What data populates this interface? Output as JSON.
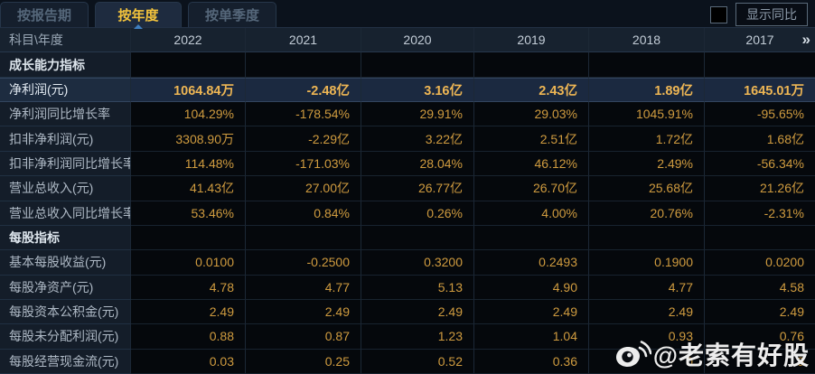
{
  "tabs": [
    {
      "label": "按报告期",
      "active": false
    },
    {
      "label": "按年度",
      "active": true
    },
    {
      "label": "按单季度",
      "active": false
    }
  ],
  "controls": {
    "yoy_checkbox_checked": false,
    "yoy_label": "显示同比"
  },
  "table": {
    "corner_label": "科目\\年度",
    "years": [
      "2022",
      "2021",
      "2020",
      "2019",
      "2018",
      "2017"
    ],
    "more_icon": "»",
    "rows": [
      {
        "type": "section",
        "label": "成长能力指标",
        "values": [
          "",
          "",
          "",
          "",
          "",
          ""
        ]
      },
      {
        "type": "data",
        "highlight": true,
        "label": "净利润(元)",
        "values": [
          "1064.84万",
          "-2.48亿",
          "3.16亿",
          "2.43亿",
          "1.89亿",
          "1645.01万"
        ]
      },
      {
        "type": "data",
        "highlight": false,
        "label": "净利润同比增长率",
        "values": [
          "104.29%",
          "-178.54%",
          "29.91%",
          "29.03%",
          "1045.91%",
          "-95.65%"
        ]
      },
      {
        "type": "data",
        "highlight": false,
        "label": "扣非净利润(元)",
        "values": [
          "3308.90万",
          "-2.29亿",
          "3.22亿",
          "2.51亿",
          "1.72亿",
          "1.68亿"
        ]
      },
      {
        "type": "data",
        "highlight": false,
        "label": "扣非净利润同比增长率",
        "values": [
          "114.48%",
          "-171.03%",
          "28.04%",
          "46.12%",
          "2.49%",
          "-56.34%"
        ]
      },
      {
        "type": "data",
        "highlight": false,
        "label": "营业总收入(元)",
        "values": [
          "41.43亿",
          "27.00亿",
          "26.77亿",
          "26.70亿",
          "25.68亿",
          "21.26亿"
        ]
      },
      {
        "type": "data",
        "highlight": false,
        "label": "营业总收入同比增长率",
        "values": [
          "53.46%",
          "0.84%",
          "0.26%",
          "4.00%",
          "20.76%",
          "-2.31%"
        ]
      },
      {
        "type": "section",
        "label": "每股指标",
        "values": [
          "",
          "",
          "",
          "",
          "",
          ""
        ]
      },
      {
        "type": "data",
        "highlight": false,
        "label": "基本每股收益(元)",
        "values": [
          "0.0100",
          "-0.2500",
          "0.3200",
          "0.2493",
          "0.1900",
          "0.0200"
        ]
      },
      {
        "type": "data",
        "highlight": false,
        "label": "每股净资产(元)",
        "values": [
          "4.78",
          "4.77",
          "5.13",
          "4.90",
          "4.77",
          "4.58"
        ]
      },
      {
        "type": "data",
        "highlight": false,
        "label": "每股资本公积金(元)",
        "values": [
          "2.49",
          "2.49",
          "2.49",
          "2.49",
          "2.49",
          "2.49"
        ]
      },
      {
        "type": "data",
        "highlight": false,
        "label": "每股未分配利润(元)",
        "values": [
          "0.88",
          "0.87",
          "1.23",
          "1.04",
          "0.93",
          "0.76"
        ]
      },
      {
        "type": "data",
        "highlight": false,
        "label": "每股经营现金流(元)",
        "values": [
          "0.03",
          "0.25",
          "0.52",
          "0.36",
          "0",
          "9"
        ]
      }
    ]
  },
  "watermark": {
    "text": "@老索有好股"
  },
  "colors": {
    "accent_gold": "#eeb654",
    "value_gold": "#cf9b3f",
    "tab_active_text": "#f3c33c",
    "highlight_row_bg": "#1b2940",
    "label_col_bg": "#141d29",
    "header_bg": "#17222f",
    "data_bg": "#05080c"
  }
}
